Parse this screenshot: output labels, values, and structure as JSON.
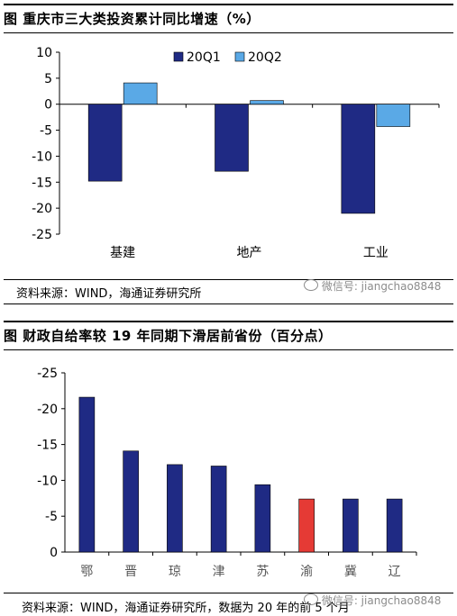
{
  "chart1": {
    "title": "图  重庆市三大类投资累计同比增速（%）",
    "source": "资料来源：WIND，海通证券研究所",
    "watermark": "微信号: jiangchao8848"
  },
  "chart2": {
    "title": "图    财政自给率较 19 年同期下滑居前省份（百分点）",
    "source": "资料来源：WIND，海通证券研究所，数据为 20 年的前 5 个月",
    "watermark": "微信号: jiangchao8848"
  },
  "chart_data": [
    {
      "type": "bar",
      "title": "重庆市三大类投资累计同比增速（%）",
      "categories": [
        "基建",
        "地产",
        "工业"
      ],
      "series": [
        {
          "name": "20Q1",
          "values": [
            -14.8,
            -12.9,
            -21.0
          ],
          "color": "#1f2a84"
        },
        {
          "name": "20Q2",
          "values": [
            4.1,
            0.7,
            -4.3
          ],
          "color": "#5aa9e6"
        }
      ],
      "ylim": [
        -25,
        10
      ],
      "yticks": [
        10,
        5,
        0,
        -5,
        -10,
        -15,
        -20,
        -25
      ],
      "legend": "top-right",
      "grid": false
    },
    {
      "type": "bar",
      "title": "财政自给率较 19 年同期下滑居前省份（百分点）",
      "categories": [
        "鄂",
        "晋",
        "琼",
        "津",
        "苏",
        "渝",
        "冀",
        "辽"
      ],
      "series": [
        {
          "values": [
            -21.6,
            -14.1,
            -12.2,
            -12.0,
            -9.4,
            -7.4,
            -7.4,
            -7.4
          ]
        }
      ],
      "highlight_color": "#e53a35",
      "highlight_category": "渝",
      "bar_color": "#1f2a84",
      "ylim": [
        -25,
        0
      ],
      "yticks": [
        -25,
        -20,
        -15,
        -10,
        -5,
        0
      ],
      "y_inverted": true,
      "grid": false
    }
  ]
}
